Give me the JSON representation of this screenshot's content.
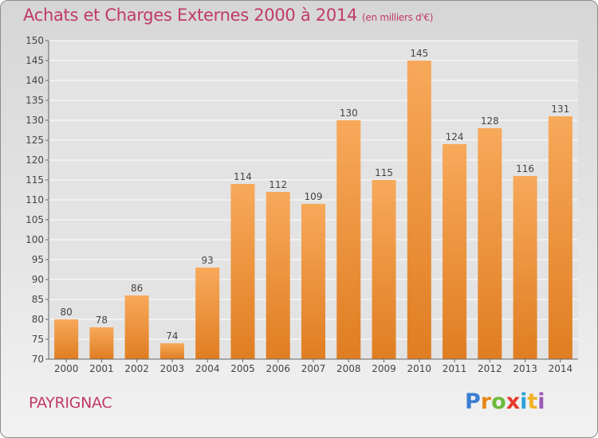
{
  "header": {
    "title": "Achats et Charges Externes 2000 à 2014",
    "unit": "(en milliers d'€)"
  },
  "footer": {
    "place": "PAYRIGNAC",
    "logo_text": "Proxiti"
  },
  "colors": {
    "title": "#c03a6a",
    "bar_light": "#f7a95a",
    "bar_dark": "#e07d22",
    "logo": [
      "#3a7fd0",
      "#e8861a",
      "#6dba3c",
      "#e83a2c",
      "#2aa2d8",
      "#f0b323",
      "#9b59b6"
    ]
  },
  "chart_data": {
    "type": "bar",
    "title": "Achats et Charges Externes 2000 à 2014",
    "subtitle": "(en milliers d'€)",
    "categories": [
      "2000",
      "2001",
      "2002",
      "2003",
      "2004",
      "2005",
      "2006",
      "2007",
      "2008",
      "2009",
      "2010",
      "2011",
      "2012",
      "2013",
      "2014"
    ],
    "values": [
      80,
      78,
      86,
      74,
      93,
      114,
      112,
      109,
      130,
      115,
      145,
      124,
      128,
      116,
      131
    ],
    "ylim": [
      70,
      150
    ],
    "yticks": [
      70,
      75,
      80,
      85,
      90,
      95,
      100,
      105,
      110,
      115,
      120,
      125,
      130,
      135,
      140,
      145,
      150
    ],
    "grid": true,
    "data_labels": true
  }
}
